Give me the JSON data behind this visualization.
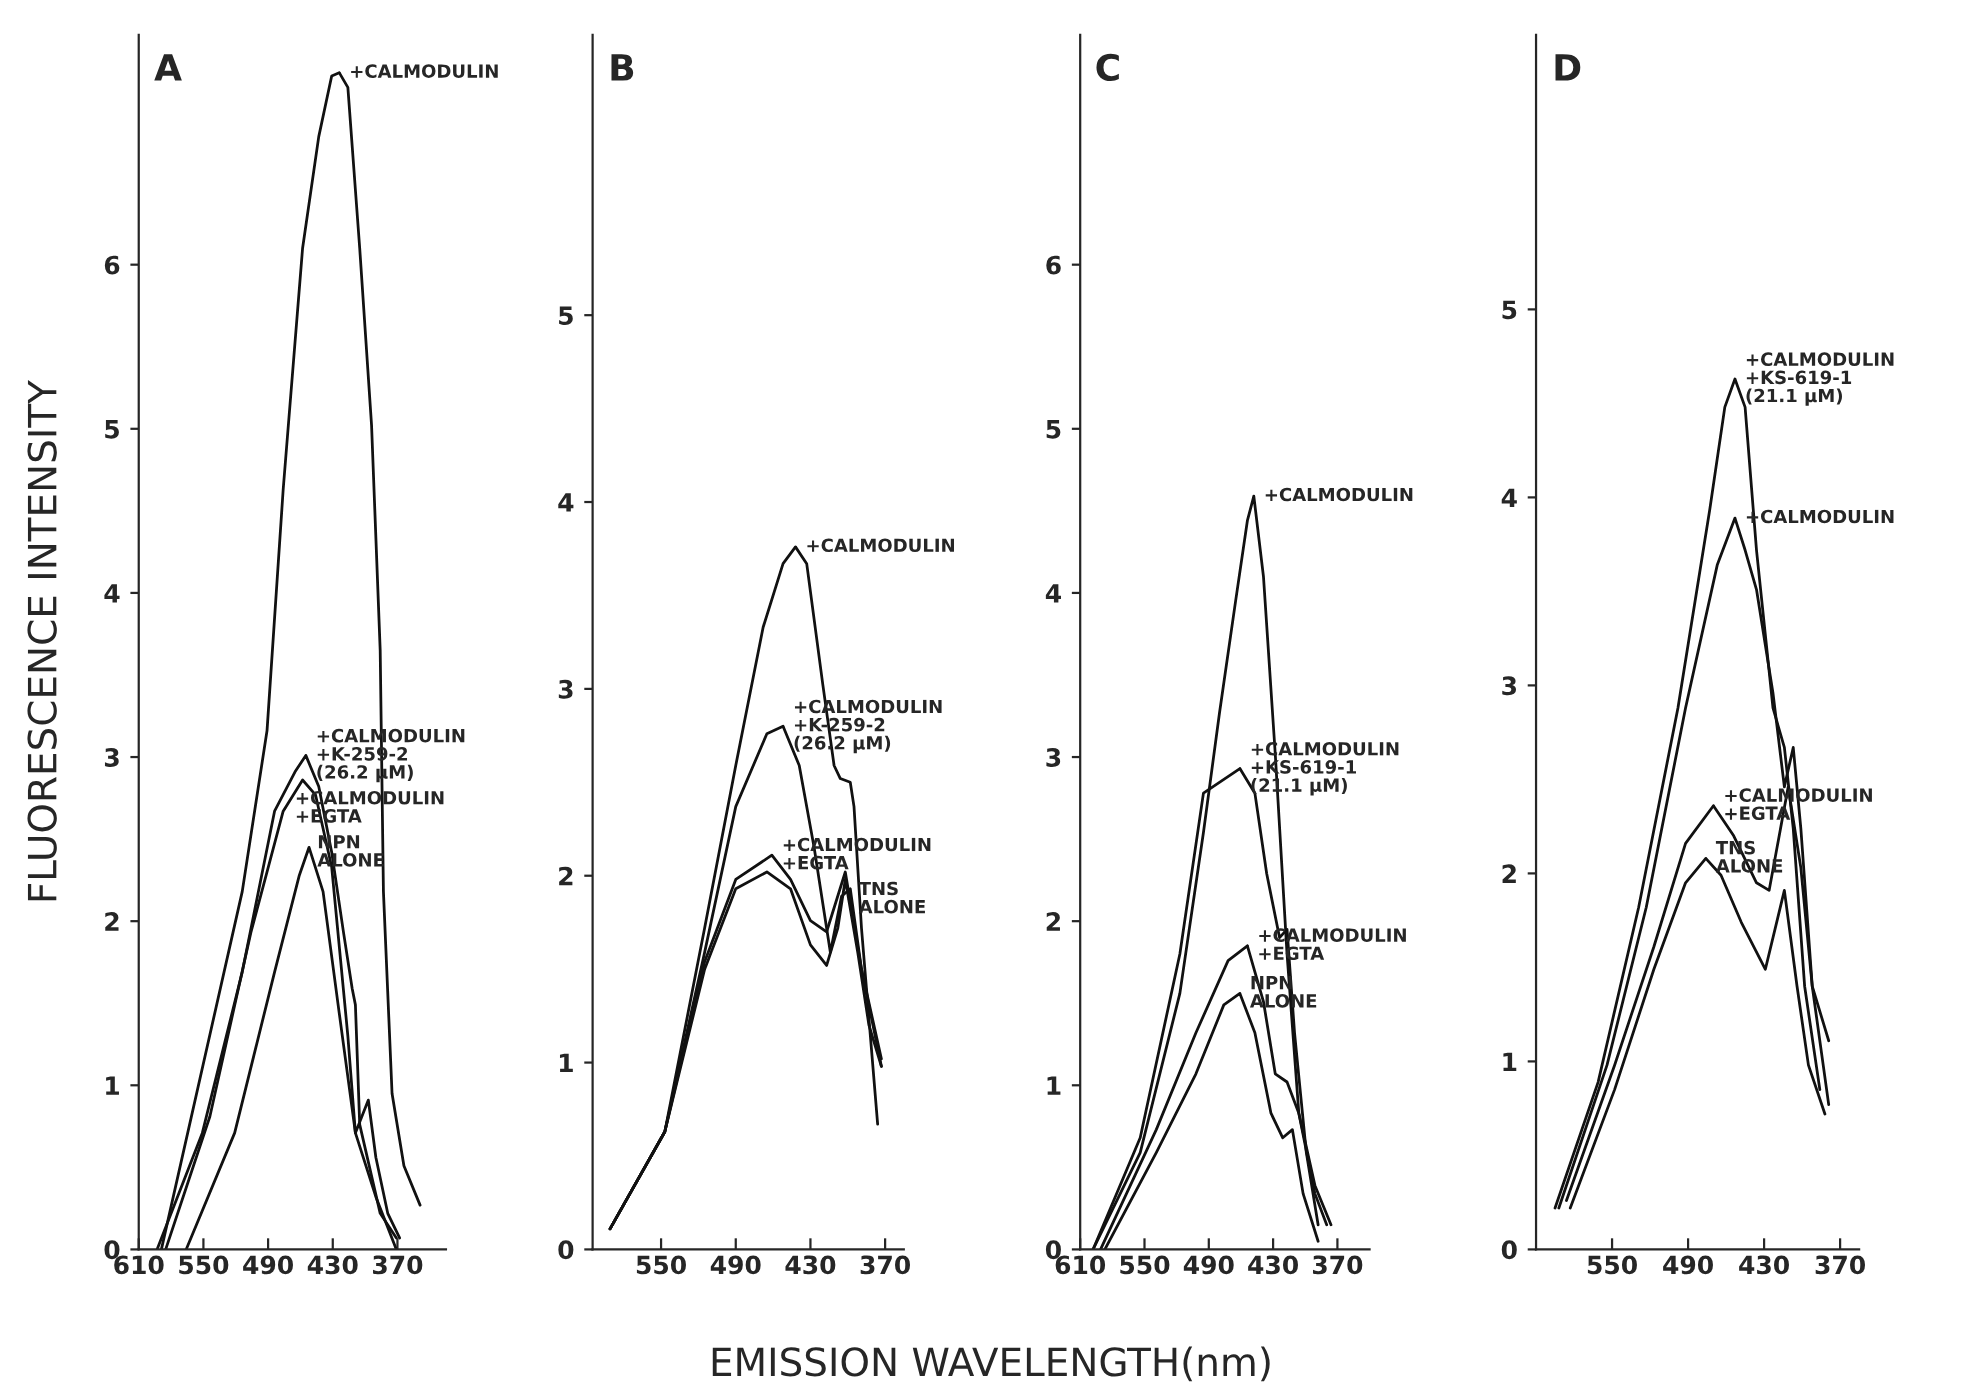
{
  "chart_data": [
    {
      "type": "line",
      "title": "A",
      "ylabel": "FLUORESCENCE INTENSITY",
      "annotations": [
        "EMISSION WAVELENGTH(nm)"
      ],
      "legend": "right",
      "xlim": [
        610,
        325
      ],
      "xticks": [
        610,
        550,
        490,
        430,
        370
      ],
      "ylim": [
        0,
        7.4
      ],
      "yticks": [
        0,
        1,
        2,
        3,
        4,
        5,
        6
      ],
      "series": [
        {
          "name": "+CALMODULIN",
          "color": "#111111",
          "x": [
            589,
            514,
            491,
            476,
            458,
            443,
            431,
            424,
            416,
            405,
            394,
            386,
            383,
            375,
            364,
            349
          ],
          "values": [
            0,
            2.18,
            3.16,
            4.63,
            6.1,
            6.78,
            7.15,
            7.17,
            7.08,
            6.1,
            5.02,
            3.65,
            2.18,
            0.95,
            0.51,
            0.27
          ]
        },
        {
          "name": "+CALMODULIN\n+K-259-2\n(26.2 μM)",
          "color": "#111111",
          "x": [
            593,
            551,
            514,
            484,
            465,
            455,
            443,
            431,
            420,
            412,
            409,
            405,
            386,
            371
          ],
          "values": [
            0,
            0.71,
            1.69,
            2.67,
            2.91,
            3.01,
            2.82,
            2.42,
            1.93,
            1.59,
            1.49,
            0.76,
            0.22,
            0.07
          ]
        },
        {
          "name": "+CALMODULIN\n+EGTA",
          "color": "#111111",
          "x": [
            585,
            544,
            506,
            476,
            458,
            446,
            431,
            416,
            409,
            397,
            390,
            379,
            368
          ],
          "values": [
            0,
            0.81,
            1.93,
            2.67,
            2.86,
            2.77,
            2.33,
            1.3,
            0.71,
            0.91,
            0.56,
            0.22,
            0.07
          ]
        },
        {
          "name": "NPN\nALONE",
          "color": "#111111",
          "x": [
            566,
            521,
            484,
            461,
            452,
            439,
            424,
            409,
            390,
            371
          ],
          "values": [
            0,
            0.71,
            1.69,
            2.28,
            2.45,
            2.18,
            1.44,
            0.71,
            0.32,
            0
          ]
        }
      ]
    },
    {
      "type": "line",
      "title": "B",
      "legend": "right",
      "xlim": [
        605,
        355
      ],
      "xticks": [
        550,
        490,
        430,
        370
      ],
      "ylim": [
        0,
        6.5
      ],
      "yticks": [
        0,
        1,
        2,
        3,
        4,
        5
      ],
      "series": [
        {
          "name": "+CALMODULIN",
          "color": "#111111",
          "x": [
            591,
            547,
            515,
            490,
            468,
            452,
            442,
            433,
            420,
            411,
            406,
            398,
            395,
            389,
            376
          ],
          "values": [
            0.11,
            0.63,
            1.72,
            2.59,
            3.33,
            3.67,
            3.76,
            3.67,
            3.02,
            2.59,
            2.52,
            2.5,
            2.37,
            1.72,
            0.67
          ]
        },
        {
          "name": "+CALMODULIN\n+K-259-2\n(26.2 μM)",
          "color": "#111111",
          "x": [
            591,
            547,
            515,
            490,
            465,
            452,
            439,
            427,
            414,
            405,
            398,
            389,
            373
          ],
          "values": [
            0.11,
            0.63,
            1.59,
            2.37,
            2.76,
            2.8,
            2.59,
            2.15,
            1.59,
            1.89,
            1.93,
            1.5,
            1.02
          ]
        },
        {
          "name": "+CALMODULIN\n+EGTA",
          "color": "#111111",
          "x": [
            591,
            547,
            515,
            490,
            461,
            446,
            430,
            417,
            402,
            389,
            373
          ],
          "values": [
            0.11,
            0.63,
            1.54,
            1.98,
            2.11,
            1.98,
            1.76,
            1.7,
            2.02,
            1.5,
            0.98
          ]
        },
        {
          "name": "TNS\nALONE",
          "color": "#111111",
          "x": [
            591,
            547,
            515,
            490,
            465,
            446,
            430,
            417,
            408,
            402,
            392,
            383,
            373
          ],
          "values": [
            0.11,
            0.63,
            1.5,
            1.93,
            2.02,
            1.93,
            1.63,
            1.52,
            1.72,
            1.98,
            1.59,
            1.2,
            0.98
          ]
        }
      ]
    },
    {
      "type": "line",
      "title": "C",
      "legend": "right",
      "xlim": [
        610,
        340
      ],
      "xticks": [
        610,
        550,
        490,
        430,
        370
      ],
      "ylim": [
        0,
        7.4
      ],
      "yticks": [
        0,
        1,
        2,
        3,
        4,
        5,
        6
      ],
      "series": [
        {
          "name": "+CALMODULIN",
          "color": "#111111",
          "x": [
            598,
            554,
            517,
            495,
            480,
            465,
            454,
            448,
            439,
            428,
            417,
            406,
            391,
            380
          ],
          "values": [
            0,
            0.59,
            1.56,
            2.54,
            3.27,
            3.95,
            4.44,
            4.59,
            4.1,
            3.02,
            1.8,
            0.83,
            0.34,
            0.15
          ]
        },
        {
          "name": "+CALMODULIN\n+KS-619-1\n(21.1 μM)",
          "color": "#111111",
          "x": [
            598,
            554,
            517,
            495,
            461,
            447,
            436,
            424,
            417,
            410,
            399,
            388
          ],
          "values": [
            0,
            0.68,
            1.8,
            2.78,
            2.93,
            2.78,
            2.29,
            1.9,
            1.95,
            1.32,
            0.59,
            0.15
          ]
        },
        {
          "name": "+CALMODULIN\n+EGTA",
          "color": "#111111",
          "x": [
            591,
            539,
            502,
            472,
            454,
            439,
            428,
            417,
            406,
            391,
            376
          ],
          "values": [
            0,
            0.73,
            1.32,
            1.76,
            1.85,
            1.51,
            1.07,
            1.02,
            0.83,
            0.39,
            0.15
          ]
        },
        {
          "name": "NPN\nALONE",
          "color": "#111111",
          "x": [
            587,
            539,
            502,
            476,
            461,
            447,
            432,
            421,
            412,
            402,
            388
          ],
          "values": [
            0,
            0.59,
            1.07,
            1.49,
            1.56,
            1.32,
            0.83,
            0.68,
            0.73,
            0.34,
            0.05
          ]
        }
      ]
    },
    {
      "type": "line",
      "title": "D",
      "legend": "right",
      "xlim": [
        610,
        355
      ],
      "xticks": [
        550,
        490,
        430,
        370
      ],
      "ylim": [
        0,
        6.46
      ],
      "yticks": [
        0,
        1,
        2,
        3,
        4,
        5
      ],
      "series": [
        {
          "name": "+CALMODULIN\n+KS-619-1\n(21.1 μM)",
          "color": "#111111",
          "x": [
            595,
            561,
            529,
            498,
            473,
            461,
            453,
            445,
            436,
            423,
            414,
            407,
            398,
            386
          ],
          "values": [
            0.22,
            0.89,
            1.82,
            2.88,
            3.93,
            4.48,
            4.63,
            4.48,
            3.72,
            2.88,
            2.67,
            2.24,
            1.4,
            0.85
          ]
        },
        {
          "name": "+CALMODULIN",
          "color": "#111111",
          "x": [
            592,
            554,
            523,
            492,
            467,
            453,
            445,
            436,
            423,
            414,
            407,
            401,
            392,
            379
          ],
          "values": [
            0.22,
            0.98,
            1.82,
            2.88,
            3.64,
            3.89,
            3.72,
            3.51,
            2.96,
            2.46,
            2.67,
            2.24,
            1.4,
            1.11
          ]
        },
        {
          "name": "+CALMODULIN\n+EGTA",
          "color": "#111111",
          "x": [
            586,
            548,
            517,
            492,
            470,
            454,
            436,
            426,
            411,
            401,
            392,
            379
          ],
          "values": [
            0.26,
            0.98,
            1.61,
            2.16,
            2.36,
            2.2,
            1.95,
            1.91,
            2.46,
            2.03,
            1.4,
            0.77
          ]
        },
        {
          "name": "TNS\nALONE",
          "color": "#111111",
          "x": [
            583,
            548,
            517,
            492,
            476,
            464,
            448,
            429,
            414,
            404,
            395,
            382
          ],
          "values": [
            0.22,
            0.85,
            1.49,
            1.95,
            2.08,
            1.99,
            1.74,
            1.49,
            1.91,
            1.4,
            0.98,
            0.72
          ]
        }
      ]
    }
  ]
}
